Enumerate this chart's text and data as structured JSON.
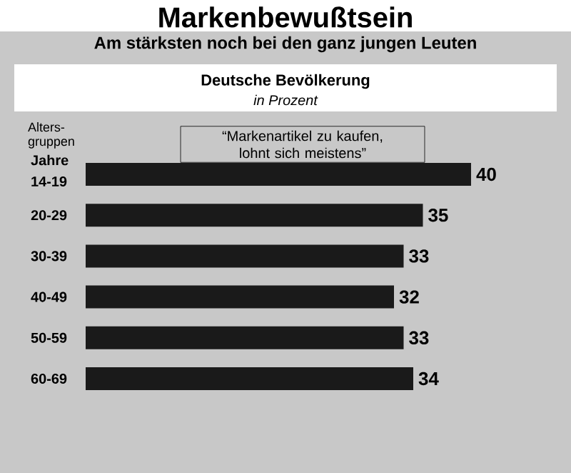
{
  "chart_data": {
    "type": "bar",
    "orientation": "horizontal",
    "title": "Markenbewußtsein",
    "subtitle": "Am stärksten noch bei den ganz jungen Leuten",
    "ylabel": "Alters-gruppen",
    "annotations": [
      "Deutsche Bevölkerung",
      "in Prozent",
      "“Markenartikel zu kaufen, lohnt sich meistens”",
      "Jahre"
    ],
    "categories": [
      "14-19",
      "20-29",
      "30-39",
      "40-49",
      "50-59",
      "60-69"
    ],
    "values": [
      40,
      35,
      33,
      32,
      33,
      34
    ],
    "color": "#1a1a1a",
    "data_labels": true
  }
}
